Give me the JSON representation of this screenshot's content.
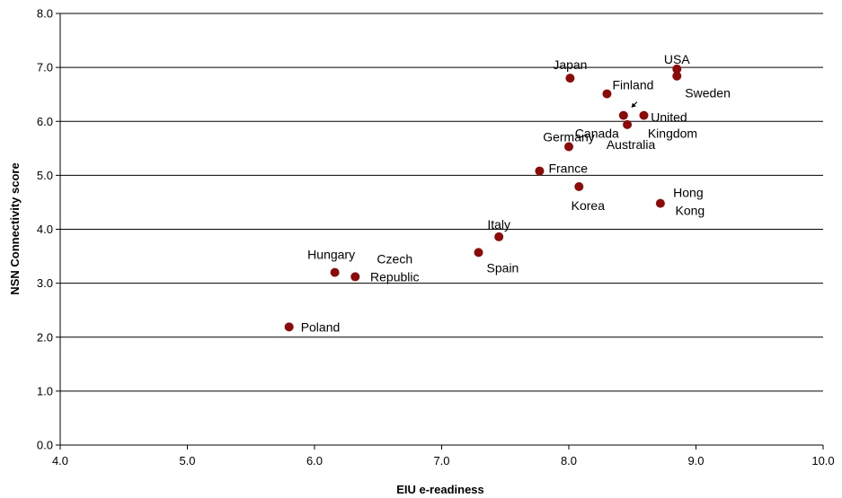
{
  "chart_data": {
    "type": "scatter",
    "title": "",
    "xlabel": "EIU e-readiness",
    "ylabel": "NSN Connectivity score",
    "xlim": [
      4.0,
      10.0
    ],
    "ylim": [
      0.0,
      8.0
    ],
    "x_ticks": [
      "4.0",
      "5.0",
      "6.0",
      "7.0",
      "8.0",
      "9.0",
      "10.0"
    ],
    "y_ticks": [
      "0.0",
      "1.0",
      "2.0",
      "3.0",
      "4.0",
      "5.0",
      "6.0",
      "7.0",
      "8.0"
    ],
    "grid": "horizontal",
    "legend": "none",
    "marker_color": "#8b0a0a",
    "points": [
      {
        "label": "USA",
        "x": 8.85,
        "y": 6.97
      },
      {
        "label": "Sweden",
        "x": 8.85,
        "y": 6.84
      },
      {
        "label": "Japan",
        "x": 8.01,
        "y": 6.8
      },
      {
        "label": "Finland",
        "x": 8.3,
        "y": 6.51
      },
      {
        "label": "Canada",
        "x": 8.43,
        "y": 6.11
      },
      {
        "label": "United Kingdom",
        "x": 8.59,
        "y": 6.11
      },
      {
        "label": "Australia",
        "x": 8.46,
        "y": 5.94
      },
      {
        "label": "Germany",
        "x": 8.0,
        "y": 5.53
      },
      {
        "label": "France",
        "x": 7.77,
        "y": 5.08
      },
      {
        "label": "Korea",
        "x": 8.08,
        "y": 4.79
      },
      {
        "label": "Hong Kong",
        "x": 8.72,
        "y": 4.48
      },
      {
        "label": "Italy",
        "x": 7.45,
        "y": 3.86
      },
      {
        "label": "Spain",
        "x": 7.29,
        "y": 3.57
      },
      {
        "label": "Hungary",
        "x": 6.16,
        "y": 3.2
      },
      {
        "label": "Czech Republic",
        "x": 6.32,
        "y": 3.12
      },
      {
        "label": "Poland",
        "x": 5.8,
        "y": 2.19
      }
    ]
  }
}
